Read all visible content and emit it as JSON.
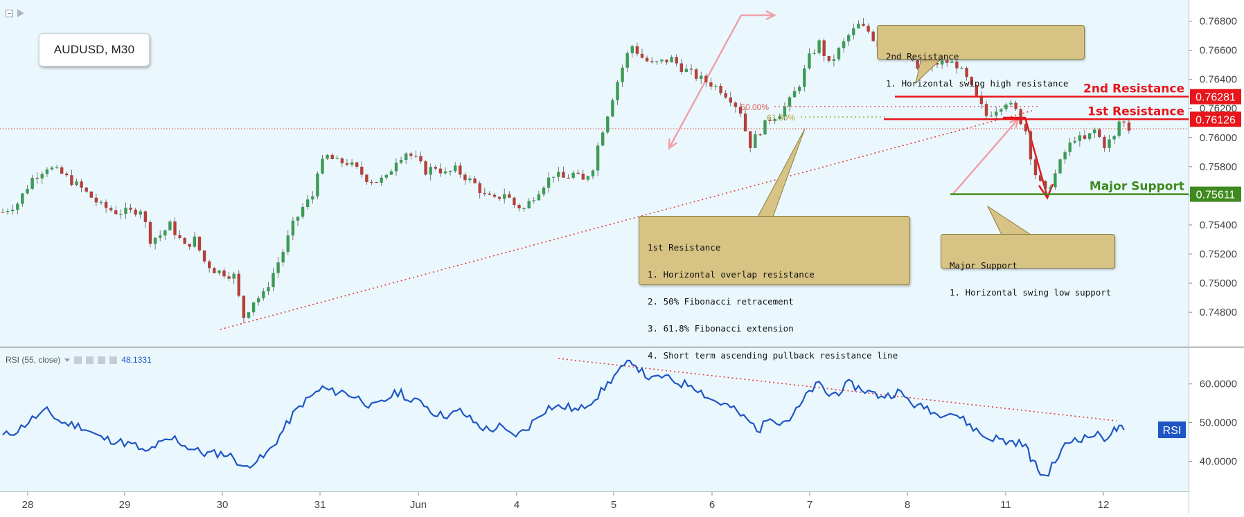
{
  "symbol_label": "AUDUSD, M30",
  "price_axis_ticks": [
    "0.76800",
    "0.76600",
    "0.76400",
    "0.76200",
    "0.76000",
    "0.75800",
    "0.75600",
    "0.75400",
    "0.75200",
    "0.75000",
    "0.74800"
  ],
  "rsi_axis_ticks": [
    "60.0000",
    "50.0000",
    "40.0000"
  ],
  "date_labels": [
    "28",
    "29",
    "30",
    "31",
    "Jun",
    "4",
    "5",
    "6",
    "7",
    "8",
    "11",
    "12"
  ],
  "levels": {
    "second_resistance": {
      "label": "2nd Resistance",
      "price": "0.76281",
      "value": 0.76281,
      "color": "#e8151b"
    },
    "first_resistance": {
      "label": "1st Resistance",
      "price": "0.76126",
      "value": 0.76126,
      "color": "#e8151b"
    },
    "major_support": {
      "label": "Major Support",
      "price": "0.75611",
      "value": 0.75611,
      "color": "#3f8a1f"
    }
  },
  "fib_labels": {
    "fib50": "50.00%",
    "fib618": "61.80%"
  },
  "notes": {
    "second_resistance": [
      "2nd Resistance",
      "1. Horizontal swing high resistance"
    ],
    "first_resistance": [
      "1st Resistance",
      "1. Horizontal overlap resistance",
      "2. 50% Fibonacci retracement",
      "3. 61.8% Fibonacci extension",
      "4. Short term ascending pullback resistance line"
    ],
    "major_support": [
      "Major Support",
      "1. Horizontal swing low support"
    ]
  },
  "rsi_legend": {
    "name": "RSI (55, close)",
    "value": "48.1331"
  },
  "rsi_tag": "RSI",
  "colors": {
    "background": "#eaf8fd",
    "bull": "#3d9a57",
    "bear": "#b53f3a",
    "rsi_line": "#1f55c4",
    "trend_dotted": "#e53935",
    "arrow_pink": "#f0a0a8"
  },
  "chart_data": [
    {
      "type": "candlestick",
      "title": "AUDUSD, M30",
      "x_start_label": "28",
      "date_labels": [
        "28",
        "29",
        "30",
        "31",
        "Jun",
        "4",
        "5",
        "6",
        "7",
        "8",
        "11",
        "12"
      ],
      "ylim": [
        0.7472,
        0.7685
      ],
      "close_path": [
        [
          0.0,
          0.7549
        ],
        [
          1.5,
          0.7555
        ],
        [
          3,
          0.7572
        ],
        [
          4.5,
          0.758
        ],
        [
          6,
          0.7575
        ],
        [
          8,
          0.7565
        ],
        [
          10,
          0.7553
        ],
        [
          11.5,
          0.7549
        ],
        [
          13,
          0.7549
        ],
        [
          14,
          0.7551
        ],
        [
          15,
          0.753
        ],
        [
          16,
          0.7533
        ],
        [
          17,
          0.754
        ],
        [
          18.5,
          0.7525
        ],
        [
          19.5,
          0.753
        ],
        [
          20.5,
          0.7515
        ],
        [
          21.5,
          0.7509
        ],
        [
          22.5,
          0.7507
        ],
        [
          23.5,
          0.7505
        ],
        [
          24,
          0.749
        ],
        [
          24.5,
          0.7477
        ],
        [
          25.5,
          0.7488
        ],
        [
          26.5,
          0.7492
        ],
        [
          27.5,
          0.7507
        ],
        [
          28.5,
          0.7522
        ],
        [
          29.5,
          0.754
        ],
        [
          30.5,
          0.7552
        ],
        [
          31.5,
          0.756
        ],
        [
          32,
          0.7578
        ],
        [
          33,
          0.7587
        ],
        [
          34,
          0.7583
        ],
        [
          35,
          0.7583
        ],
        [
          36,
          0.7578
        ],
        [
          37,
          0.7572
        ],
        [
          38,
          0.757
        ],
        [
          39,
          0.7572
        ],
        [
          40,
          0.7585
        ],
        [
          41,
          0.759
        ],
        [
          42,
          0.7585
        ],
        [
          43,
          0.7577
        ],
        [
          44,
          0.758
        ],
        [
          45,
          0.7575
        ],
        [
          46,
          0.7578
        ],
        [
          47,
          0.7573
        ],
        [
          48,
          0.7568
        ],
        [
          49,
          0.756
        ],
        [
          50,
          0.7557
        ],
        [
          51,
          0.7562
        ],
        [
          52,
          0.7554
        ],
        [
          53,
          0.7551
        ],
        [
          54,
          0.756
        ],
        [
          55,
          0.7568
        ],
        [
          56,
          0.7575
        ],
        [
          57,
          0.7572
        ],
        [
          58,
          0.7575
        ],
        [
          59,
          0.757
        ],
        [
          60,
          0.758
        ],
        [
          60.7,
          0.76
        ],
        [
          61.3,
          0.7612
        ],
        [
          62,
          0.7628
        ],
        [
          62.7,
          0.7643
        ],
        [
          63.5,
          0.7657
        ],
        [
          64,
          0.7663
        ],
        [
          65,
          0.7655
        ],
        [
          66,
          0.765
        ],
        [
          67,
          0.7652
        ],
        [
          68,
          0.7654
        ],
        [
          69,
          0.7648
        ],
        [
          70,
          0.7644
        ],
        [
          71,
          0.764
        ],
        [
          72,
          0.7637
        ],
        [
          73,
          0.7633
        ],
        [
          74,
          0.7627
        ],
        [
          75,
          0.7618
        ],
        [
          75.5,
          0.7605
        ],
        [
          76,
          0.7595
        ],
        [
          77,
          0.7605
        ],
        [
          78,
          0.7613
        ],
        [
          79,
          0.7617
        ],
        [
          80,
          0.7625
        ],
        [
          81,
          0.7637
        ],
        [
          82,
          0.7655
        ],
        [
          83,
          0.7665
        ],
        [
          84,
          0.765
        ],
        [
          85,
          0.766
        ],
        [
          86,
          0.767
        ],
        [
          87,
          0.7677
        ],
        [
          88,
          0.7673
        ],
        [
          89,
          0.7664
        ],
        [
          90,
          0.7668
        ],
        [
          91,
          0.767
        ],
        [
          92,
          0.7665
        ],
        [
          92.5,
          0.7653
        ],
        [
          93,
          0.7645
        ],
        [
          94,
          0.7648
        ],
        [
          95,
          0.7651
        ],
        [
          96,
          0.7652
        ],
        [
          97,
          0.765
        ],
        [
          98,
          0.764
        ],
        [
          99,
          0.7627
        ],
        [
          100,
          0.7615
        ],
        [
          101,
          0.762
        ],
        [
          102,
          0.7625
        ],
        [
          103,
          0.7618
        ],
        [
          104,
          0.7605
        ],
        [
          104.5,
          0.7588
        ],
        [
          105,
          0.7575
        ],
        [
          105.5,
          0.7568
        ],
        [
          106,
          0.7562
        ],
        [
          107,
          0.7575
        ],
        [
          108,
          0.759
        ],
        [
          109,
          0.76
        ],
        [
          110,
          0.7598
        ],
        [
          111,
          0.7605
        ],
        [
          112,
          0.7595
        ],
        [
          113,
          0.76
        ],
        [
          113.5,
          0.7611
        ],
        [
          114,
          0.761
        ],
        [
          114.5,
          0.7606
        ]
      ],
      "levels": [
        0.76281,
        0.76126,
        0.75611
      ]
    },
    {
      "type": "line",
      "title": "RSI (55, close)",
      "ylim": [
        34,
        68
      ],
      "series": [
        {
          "name": "RSI (55, close)",
          "points": [
            [
              0,
              46.5
            ],
            [
              1.5,
              48
            ],
            [
              3,
              51
            ],
            [
              4.5,
              53
            ],
            [
              6,
              50
            ],
            [
              8,
              49
            ],
            [
              10,
              46
            ],
            [
              12,
              45
            ],
            [
              13.5,
              44
            ],
            [
              14.5,
              42
            ],
            [
              15.5,
              44
            ],
            [
              16.5,
              45
            ],
            [
              17.5,
              46
            ],
            [
              18.5,
              44
            ],
            [
              19.5,
              43
            ],
            [
              20.5,
              42
            ],
            [
              21.5,
              42
            ],
            [
              22.5,
              42
            ],
            [
              23.5,
              41
            ],
            [
              24.5,
              38
            ],
            [
              25.5,
              40
            ],
            [
              26.5,
              41
            ],
            [
              27.5,
              44
            ],
            [
              28.5,
              48
            ],
            [
              29.5,
              52
            ],
            [
              30.5,
              55
            ],
            [
              31.5,
              57
            ],
            [
              32.5,
              59
            ],
            [
              33.5,
              58
            ],
            [
              34.5,
              58
            ],
            [
              35.5,
              57
            ],
            [
              36.5,
              56
            ],
            [
              37.5,
              54
            ],
            [
              38.5,
              55
            ],
            [
              39.5,
              57
            ],
            [
              40.5,
              58
            ],
            [
              41.5,
              55
            ],
            [
              42.5,
              56
            ],
            [
              43.5,
              53
            ],
            [
              44.5,
              52
            ],
            [
              45.5,
              52
            ],
            [
              46.5,
              53
            ],
            [
              47.5,
              51
            ],
            [
              48.5,
              49
            ],
            [
              49.5,
              48
            ],
            [
              50.5,
              49
            ],
            [
              51.5,
              47
            ],
            [
              52.5,
              47
            ],
            [
              53.5,
              49
            ],
            [
              54.5,
              52
            ],
            [
              55.5,
              54
            ],
            [
              56.5,
              54
            ],
            [
              57.5,
              54
            ],
            [
              58.5,
              53
            ],
            [
              59.5,
              55
            ],
            [
              60.5,
              57
            ],
            [
              61.5,
              60
            ],
            [
              62.5,
              63
            ],
            [
              63.5,
              65
            ],
            [
              64,
              66
            ],
            [
              65,
              63
            ],
            [
              66,
              61
            ],
            [
              67,
              62
            ],
            [
              68,
              61
            ],
            [
              69,
              60
            ],
            [
              70,
              60
            ],
            [
              71,
              58
            ],
            [
              72,
              56
            ],
            [
              73,
              55
            ],
            [
              74,
              54
            ],
            [
              75,
              52
            ],
            [
              76,
              50
            ],
            [
              77,
              48
            ],
            [
              78,
              52
            ],
            [
              79,
              50
            ],
            [
              80,
              51
            ],
            [
              81,
              54
            ],
            [
              82,
              58
            ],
            [
              83,
              60
            ],
            [
              84,
              57
            ],
            [
              85,
              58
            ],
            [
              86,
              60
            ],
            [
              87,
              59
            ],
            [
              88,
              58
            ],
            [
              89,
              57
            ],
            [
              90,
              57
            ],
            [
              91,
              58
            ],
            [
              92,
              56
            ],
            [
              93,
              54
            ],
            [
              94,
              54
            ],
            [
              95,
              52
            ],
            [
              96,
              53
            ],
            [
              97,
              52
            ],
            [
              98,
              50
            ],
            [
              99,
              48
            ],
            [
              100,
              46
            ],
            [
              101,
              46
            ],
            [
              102,
              45
            ],
            [
              103,
              45
            ],
            [
              104,
              44
            ],
            [
              104.5,
              41
            ],
            [
              105,
              39
            ],
            [
              105.5,
              37
            ],
            [
              106,
              36
            ],
            [
              107,
              40
            ],
            [
              108,
              44
            ],
            [
              109,
              46
            ],
            [
              110,
              46
            ],
            [
              111,
              47
            ],
            [
              112,
              46
            ],
            [
              113,
              48
            ],
            [
              113.5,
              48.5
            ],
            [
              114,
              48.1
            ]
          ]
        }
      ]
    }
  ]
}
